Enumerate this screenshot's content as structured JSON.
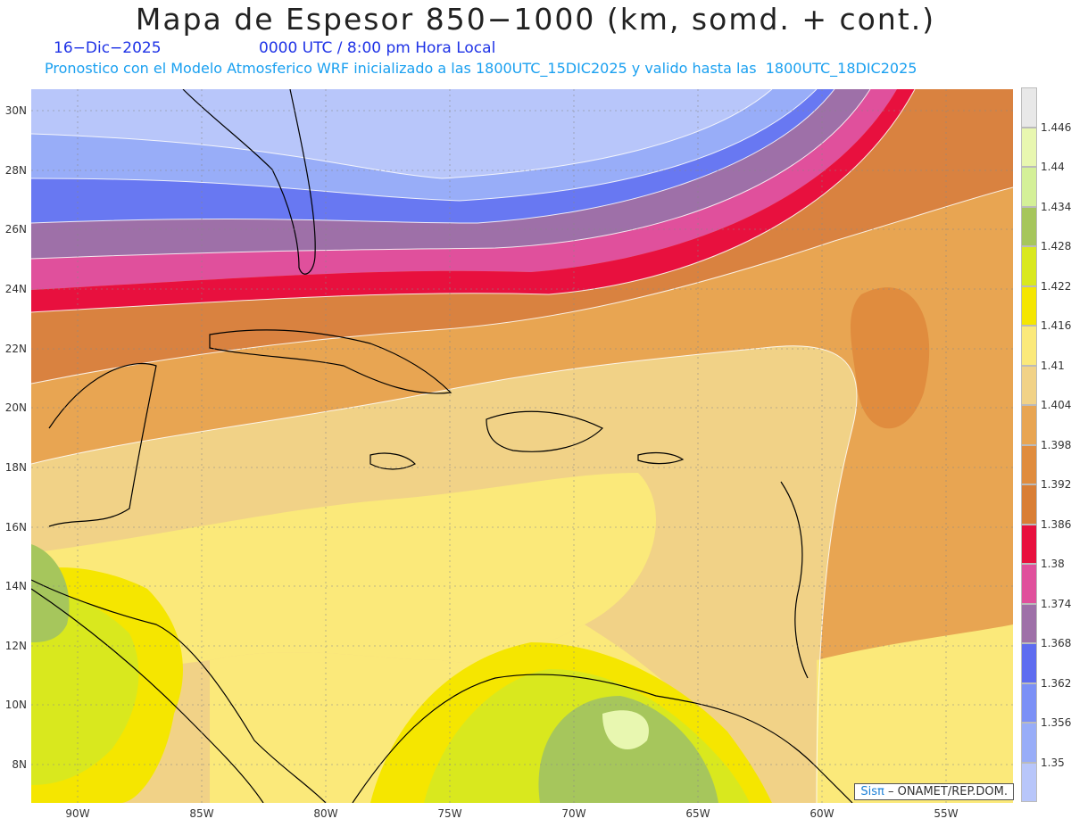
{
  "title": "Mapa de Espesor 850−1000 (km, somd. + cont.)",
  "date": "16−Dic−2025",
  "time": "0000 UTC / 8:00 pm Hora Local",
  "subtitle": "Pronostico con el Modelo Atmosferico WRF inicializado a las 1800UTC_15DIC2025 y valido hasta las  1800UTC_18DIC2025",
  "lat_ticks": [
    "30N",
    "28N",
    "26N",
    "24N",
    "22N",
    "20N",
    "18N",
    "16N",
    "14N",
    "12N",
    "10N",
    "8N"
  ],
  "lon_ticks": [
    "90W",
    "85W",
    "80W",
    "75W",
    "70W",
    "65W",
    "60W",
    "55W"
  ],
  "legend": {
    "colors": [
      "#e8e8e8",
      "#e8f7b0",
      "#d4f098",
      "#a6c65c",
      "#d9e81e",
      "#f5e600",
      "#fbe97a",
      "#f1d287",
      "#e8a552",
      "#e08c3e",
      "#d97e35",
      "#e8103e",
      "#e0509c",
      "#9e70a8",
      "#5e6cf0",
      "#7b90f6",
      "#98adf8",
      "#b8c6fa"
    ],
    "labels": [
      "1.446",
      "1.44",
      "1.434",
      "1.428",
      "1.422",
      "1.416",
      "1.41",
      "1.404",
      "1.398",
      "1.392",
      "1.386",
      "1.38",
      "1.374",
      "1.368",
      "1.362",
      "1.356",
      "1.35"
    ]
  },
  "credit": {
    "sis": "Sisπ",
    "rest": "– ONAMET/REP.DOM."
  }
}
